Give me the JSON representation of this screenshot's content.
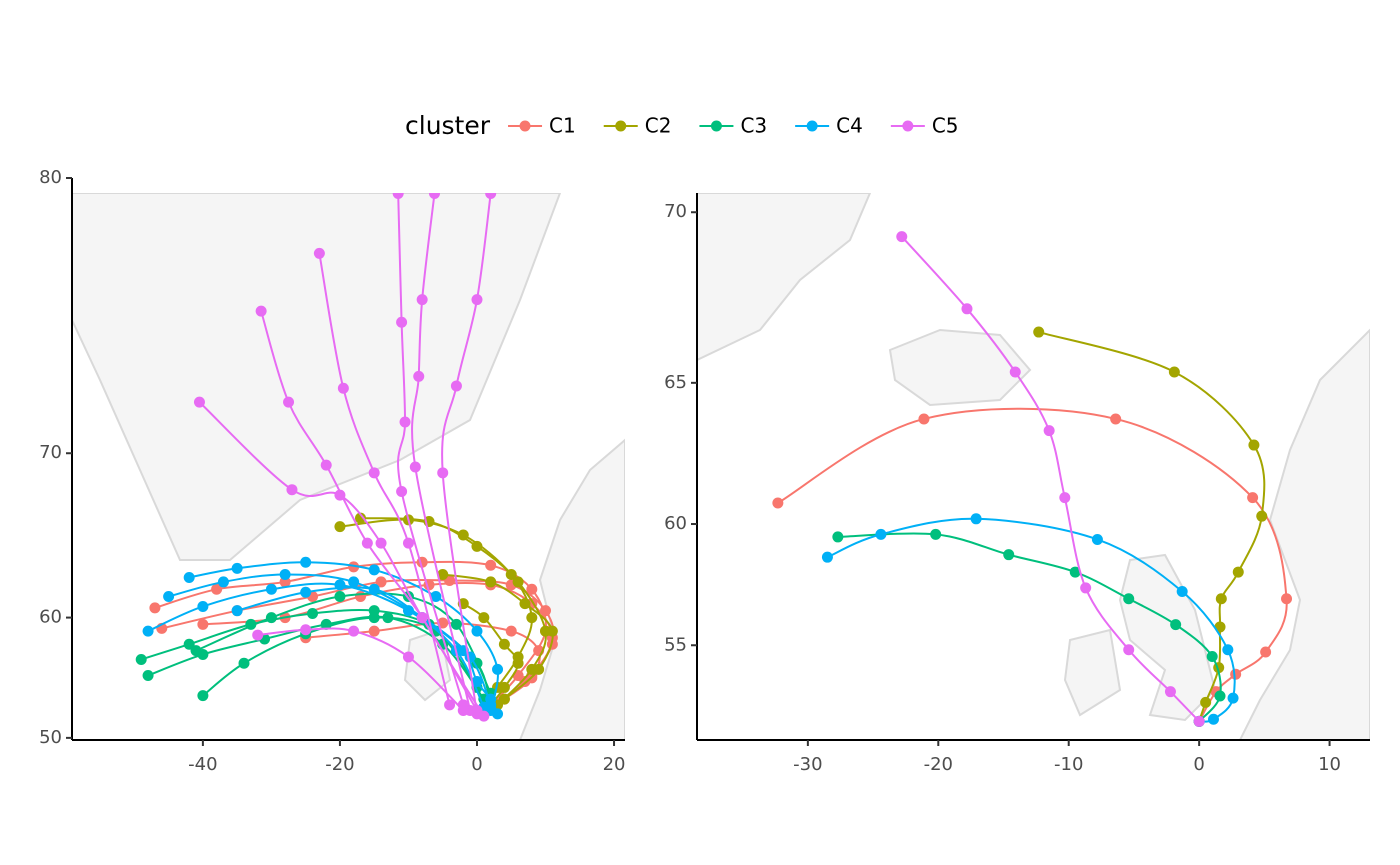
{
  "chart_data": [
    {
      "type": "trajectory",
      "projection": "mercator",
      "legend_title": "cluster",
      "legend": "top",
      "xlim": [
        -59.1,
        21.6
      ],
      "ylim": [
        49.8,
        80
      ],
      "xticks": [
        -40,
        -20,
        0,
        20
      ],
      "yticks": [
        50,
        60,
        70,
        80
      ],
      "series": [
        {
          "name": "C1",
          "color": "#f8766d",
          "tracks": [
            {
              "x": [
                -47,
                -38,
                -28,
                -18,
                -8,
                2,
                8,
                10,
                6,
                2
              ],
              "y": [
                60.7,
                62,
                62.5,
                63.5,
                63.8,
                63.6,
                62,
                59,
                55.5,
                53
              ]
            },
            {
              "x": [
                -46,
                -35,
                -24,
                -14,
                -4,
                5,
                10,
                11,
                7,
                2
              ],
              "y": [
                59.2,
                60.5,
                61.5,
                62.5,
                62.6,
                62.3,
                60.5,
                58,
                55,
                52.8
              ]
            },
            {
              "x": [
                -40,
                -28,
                -17,
                -7,
                2,
                8,
                11,
                8,
                3
              ],
              "y": [
                59.5,
                60,
                61.5,
                62.3,
                62.3,
                61,
                58.5,
                55.5,
                53.2
              ]
            },
            {
              "x": [
                -25,
                -15,
                -5,
                5,
                9,
                8,
                4
              ],
              "y": [
                58.5,
                59,
                59.6,
                59,
                57.5,
                55.3,
                53.5
              ]
            }
          ]
        },
        {
          "name": "C2",
          "color": "#a3a500",
          "tracks": [
            {
              "x": [
                -20,
                -10,
                -2,
                5,
                8,
                6,
                3,
                1
              ],
              "y": [
                66,
                66.4,
                65.5,
                63,
                60,
                57,
                54.5,
                52.5
              ]
            },
            {
              "x": [
                -17,
                -7,
                0,
                6,
                10,
                8,
                3
              ],
              "y": [
                66.5,
                66.3,
                64.8,
                62.5,
                59,
                56,
                53
              ]
            },
            {
              "x": [
                -5,
                2,
                7,
                11,
                9,
                4
              ],
              "y": [
                63,
                62.5,
                61,
                59,
                56,
                53.5
              ]
            },
            {
              "x": [
                -2,
                1,
                4,
                6,
                4,
                2
              ],
              "y": [
                61,
                60,
                58,
                56.5,
                54.5,
                53
              ]
            }
          ]
        },
        {
          "name": "C3",
          "color": "#00bf7d",
          "tracks": [
            {
              "x": [
                -49,
                -42,
                -33,
                -24,
                -15,
                -7,
                0,
                2
              ],
              "y": [
                56.8,
                58,
                59.5,
                60.3,
                60.5,
                59.5,
                56.5,
                53
              ]
            },
            {
              "x": [
                -48,
                -40,
                -31,
                -22,
                -13,
                -5,
                1
              ],
              "y": [
                55.5,
                57.2,
                58.4,
                59.5,
                60,
                58,
                53.5
              ]
            },
            {
              "x": [
                -40,
                -34,
                -25,
                -15,
                -6,
                0
              ],
              "y": [
                53.8,
                56.5,
                58.8,
                60,
                59,
                54.5
              ]
            },
            {
              "x": [
                -41,
                -30,
                -20,
                -10,
                -3,
                2
              ],
              "y": [
                57.5,
                60,
                61.5,
                61.5,
                59.5,
                54
              ]
            }
          ]
        },
        {
          "name": "C4",
          "color": "#00b0f6",
          "tracks": [
            {
              "x": [
                -42,
                -35,
                -25,
                -15,
                -6,
                0,
                3,
                2
              ],
              "y": [
                62.8,
                63.4,
                63.8,
                63.3,
                61.5,
                59,
                56,
                52.5
              ]
            },
            {
              "x": [
                -45,
                -37,
                -28,
                -18,
                -8,
                -1,
                2
              ],
              "y": [
                61.5,
                62.5,
                63,
                62.5,
                60,
                57,
                53
              ]
            },
            {
              "x": [
                -48,
                -40,
                -30,
                -20,
                -10,
                -3,
                1
              ],
              "y": [
                59,
                60.8,
                62,
                62.3,
                60.5,
                57.5,
                52.8
              ]
            },
            {
              "x": [
                -35,
                -25,
                -15,
                -8,
                -2,
                0,
                2,
                3
              ],
              "y": [
                60.5,
                61.8,
                62,
                60,
                57.5,
                55,
                53.5,
                52.2
              ]
            }
          ]
        },
        {
          "name": "C5",
          "color": "#e76bf3",
          "tracks": [
            {
              "x": [
                2,
                0,
                -3,
                -5,
                0
              ],
              "y": [
                79.6,
                76.4,
                73.1,
                69,
                52.2
              ]
            },
            {
              "x": [
                -6.2,
                -8,
                -8.5,
                -9,
                -1
              ],
              "y": [
                79.6,
                76.4,
                73.5,
                69.3,
                52.5
              ]
            },
            {
              "x": [
                -11.5,
                -11,
                -10.5,
                -11,
                -2
              ],
              "y": [
                79.6,
                75.6,
                71.5,
                68,
                53
              ]
            },
            {
              "x": [
                -23,
                -19.5,
                -15,
                -10,
                -4
              ],
              "y": [
                77.9,
                73,
                69,
                65,
                53
              ]
            },
            {
              "x": [
                -31.5,
                -27.5,
                -22,
                -16,
                -8,
                0
              ],
              "y": [
                76,
                72.4,
                69.4,
                65,
                60,
                52.5
              ]
            },
            {
              "x": [
                -40.5,
                -27,
                -20,
                -14,
                -8,
                1
              ],
              "y": [
                72.4,
                68.1,
                67.8,
                65,
                60,
                52
              ]
            },
            {
              "x": [
                -32,
                -25,
                -18,
                -10,
                -2
              ],
              "y": [
                58.7,
                59.1,
                59,
                57,
                52.5
              ]
            }
          ]
        }
      ]
    },
    {
      "type": "trajectory",
      "projection": "mercator",
      "xlim": [
        -38.5,
        13.1
      ],
      "ylim": [
        50.6,
        70.5
      ],
      "xticks": [
        -30,
        -20,
        -10,
        0,
        10
      ],
      "yticks": [
        55,
        60,
        65,
        70
      ],
      "series": [
        {
          "color": "#f8766d",
          "tracks": [
            {
              "x": [
                -32.3,
                -21.1,
                -6.4,
                4.1,
                6.7,
                5.1,
                2.8,
                1.3,
                0
              ],
              "y": [
                60.8,
                63.8,
                63.8,
                61,
                57,
                54.7,
                53.7,
                52.9,
                51.5
              ]
            }
          ]
        },
        {
          "color": "#a3a500",
          "tracks": [
            {
              "x": [
                -12.3,
                -1.9,
                4.2,
                4.8,
                3,
                1.7,
                1.6,
                1.5,
                0.5,
                0
              ],
              "y": [
                66.6,
                65.35,
                62.9,
                60.3,
                58.1,
                57,
                55.8,
                54,
                52.4,
                51.5
              ]
            }
          ]
        },
        {
          "color": "#00bf7d",
          "tracks": [
            {
              "x": [
                -27.7,
                -20.2,
                -14.6,
                -9.5,
                -5.4,
                -1.8,
                1,
                1.6,
                0
              ],
              "y": [
                59.5,
                59.6,
                58.8,
                58.1,
                57,
                55.9,
                54.5,
                52.7,
                51.5
              ]
            }
          ]
        },
        {
          "color": "#00b0f6",
          "tracks": [
            {
              "x": [
                -28.5,
                -24.4,
                -17.1,
                -7.8,
                -1.3,
                2.2,
                2.6,
                1.1,
                0
              ],
              "y": [
                58.7,
                59.6,
                60.2,
                59.4,
                57.3,
                54.8,
                52.6,
                51.6,
                51.5
              ]
            }
          ]
        },
        {
          "color": "#e76bf3",
          "tracks": [
            {
              "x": [
                -22.8,
                -17.8,
                -14.1,
                -11.5,
                -10.3,
                -8.7,
                -5.4,
                -2.2,
                0
              ],
              "y": [
                69.35,
                67.3,
                65.35,
                63.4,
                61,
                57.45,
                54.8,
                52.9,
                51.5
              ]
            }
          ]
        }
      ]
    }
  ]
}
